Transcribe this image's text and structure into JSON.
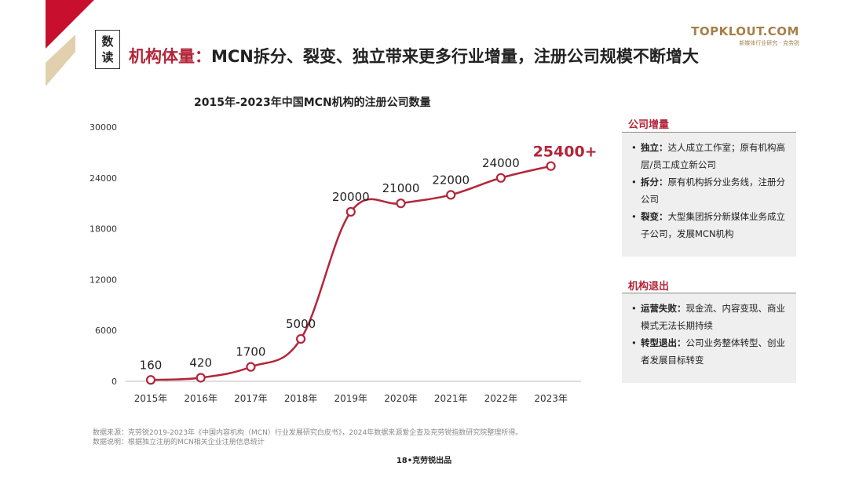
{
  "header": {
    "tag_line1": "数",
    "tag_line2": "读",
    "headline_accent": "机构体量：",
    "headline_rest": "MCN拆分、裂变、独立带来更多行业增量，注册公司规模不断增大"
  },
  "logo": {
    "main": "TOPKLOUT.COM",
    "sub": "新媒体行业研究 · 克劳锐"
  },
  "chart_data": {
    "type": "line",
    "title": "2015年-2023年中国MCN机构的注册公司数量",
    "categories": [
      "2015年",
      "2016年",
      "2017年",
      "2018年",
      "2019年",
      "2020年",
      "2021年",
      "2022年",
      "2023年"
    ],
    "values": [
      160,
      420,
      1700,
      5000,
      20000,
      21000,
      22000,
      24000,
      25400
    ],
    "data_labels": [
      "160",
      "420",
      "1700",
      "5000",
      "20000",
      "21000",
      "22000",
      "24000",
      "25400+"
    ],
    "ylim": [
      0,
      30000
    ],
    "yticks": [
      0,
      6000,
      12000,
      18000,
      24000,
      30000
    ],
    "ytick_labels": [
      "0",
      "6000",
      "12000",
      "18000",
      "24000",
      "30000"
    ],
    "xlabel": "",
    "ylabel": "",
    "grid": false,
    "legend": "none",
    "line_color": "#b3263a",
    "highlight_color": "#b3263a"
  },
  "panels": {
    "growth": {
      "title": "公司增量",
      "items": [
        {
          "key": "独立：",
          "text": "达人成立工作室；原有机构高层/员工成立新公司"
        },
        {
          "key": "拆分：",
          "text": "原有机构拆分业务线，注册分公司"
        },
        {
          "key": "裂变：",
          "text": "大型集团拆分新媒体业务成立子公司，发展MCN机构"
        }
      ]
    },
    "exit": {
      "title": "机构退出",
      "items": [
        {
          "key": "运营失败：",
          "text": "现金流、内容变现、商业模式无法长期持续"
        },
        {
          "key": "转型退出：",
          "text": "公司业务整体转型、创业者发展目标转变"
        }
      ]
    }
  },
  "footnote": {
    "line1": "数据来源：克劳锐2019-2023年《中国内容机构（MCN）行业发展研究白皮书》，2024年数据来源爱企查及克劳锐指数研究院整理所得。",
    "line2": "数据说明：根据独立注册的MCN相关企业注册信息统计"
  },
  "page_footer": "18•克劳锐出品",
  "colors": {
    "accent": "#b3263a",
    "logo_gold": "#a5804a",
    "deco_red": "#c8102e",
    "deco_beige": "#e2cfae"
  }
}
